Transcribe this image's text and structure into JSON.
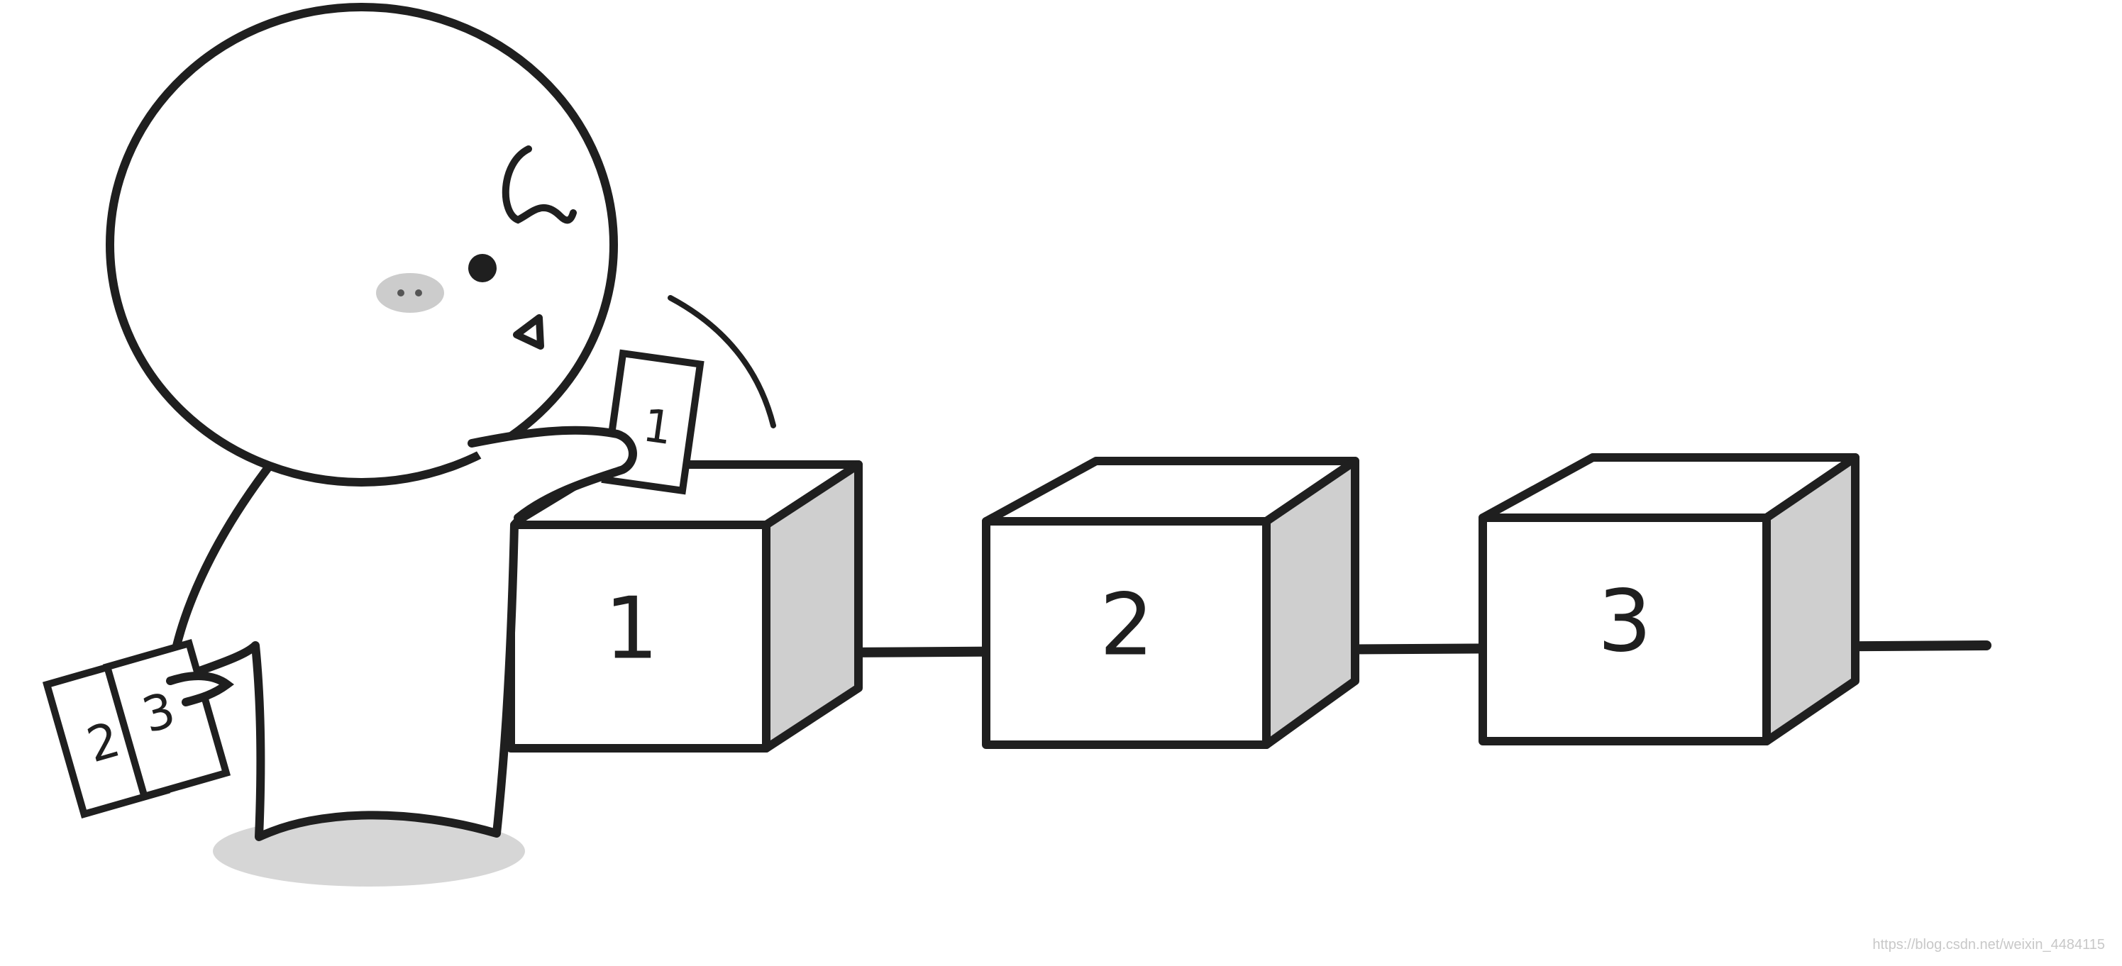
{
  "cards_in_hand": {
    "card_a": "2",
    "card_b": "3"
  },
  "card_being_placed": "1",
  "boxes": [
    {
      "label": "1"
    },
    {
      "label": "2"
    },
    {
      "label": "3"
    }
  ],
  "watermark": "https://blog.csdn.net/weixin_4484115",
  "colors": {
    "stroke": "#1f1f1f",
    "box_side_shade": "#cfcfcf",
    "blush": "#cccccc",
    "shadow": "#d6d6d6",
    "background": "#ffffff"
  }
}
